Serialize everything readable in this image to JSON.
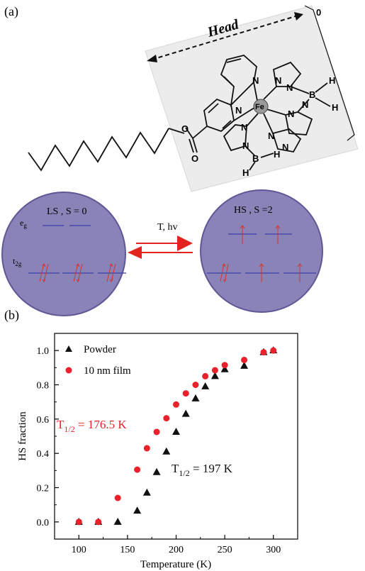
{
  "panel_a": {
    "label": "(a)",
    "head_label": "Head",
    "zero_label": "0",
    "atoms": {
      "fe": "Fe",
      "n": "N",
      "b": "B",
      "h": "H",
      "o": "O"
    },
    "ls_state": {
      "title": "LS , S = 0",
      "eg": "e",
      "eg_sub": "g",
      "t2g": "t",
      "t2g_sub": "2g"
    },
    "hs_state": {
      "title": "HS , S =2"
    },
    "transition_label": "T, hv",
    "colors": {
      "circle_fill": "#8a83b8",
      "circle_stroke": "#5f5896",
      "arrow": "#e3231d",
      "level_line": "#3a3ea8"
    }
  },
  "panel_b": {
    "label": "(b)",
    "annotations": {
      "film_t_half_main": "T",
      "film_t_half_sub": "1/2",
      "film_t_half_value": " = 176.5 K",
      "powder_t_half_main": "T",
      "powder_t_half_sub": "1/2",
      "powder_t_half_value": " = 197 K"
    }
  },
  "chart_data": {
    "type": "scatter",
    "title": "",
    "xlabel": "Temperature (K)",
    "ylabel": "HS  fraction",
    "xlim": [
      75,
      325
    ],
    "ylim": [
      -0.1,
      1.1
    ],
    "xticks": [
      100,
      150,
      200,
      250,
      300
    ],
    "yticks": [
      "0.0",
      "0.2",
      "0.4",
      "0.6",
      "0.8",
      "1.0"
    ],
    "ytick_values": [
      0,
      0.2,
      0.4,
      0.6,
      0.8,
      1.0
    ],
    "grid": false,
    "legend_position": "top-left",
    "series": [
      {
        "name": "Powder",
        "marker": "triangle",
        "color": "#111111",
        "x": [
          100,
          120,
          140,
          160,
          170,
          180,
          190,
          200,
          210,
          220,
          230,
          240,
          250,
          270,
          290,
          300
        ],
        "y": [
          0.0,
          0.0,
          0.0,
          0.065,
          0.17,
          0.29,
          0.41,
          0.525,
          0.63,
          0.72,
          0.79,
          0.85,
          0.89,
          0.91,
          0.99,
          1.0
        ]
      },
      {
        "name": "10 nm film",
        "marker": "circle",
        "color": "#e8212a",
        "x": [
          100,
          120,
          140,
          160,
          170,
          180,
          190,
          200,
          210,
          220,
          230,
          240,
          250,
          270,
          290,
          300
        ],
        "y": [
          0.0,
          0.0,
          0.14,
          0.305,
          0.43,
          0.525,
          0.605,
          0.685,
          0.75,
          0.8,
          0.85,
          0.885,
          0.915,
          0.945,
          0.99,
          1.0
        ]
      }
    ]
  }
}
